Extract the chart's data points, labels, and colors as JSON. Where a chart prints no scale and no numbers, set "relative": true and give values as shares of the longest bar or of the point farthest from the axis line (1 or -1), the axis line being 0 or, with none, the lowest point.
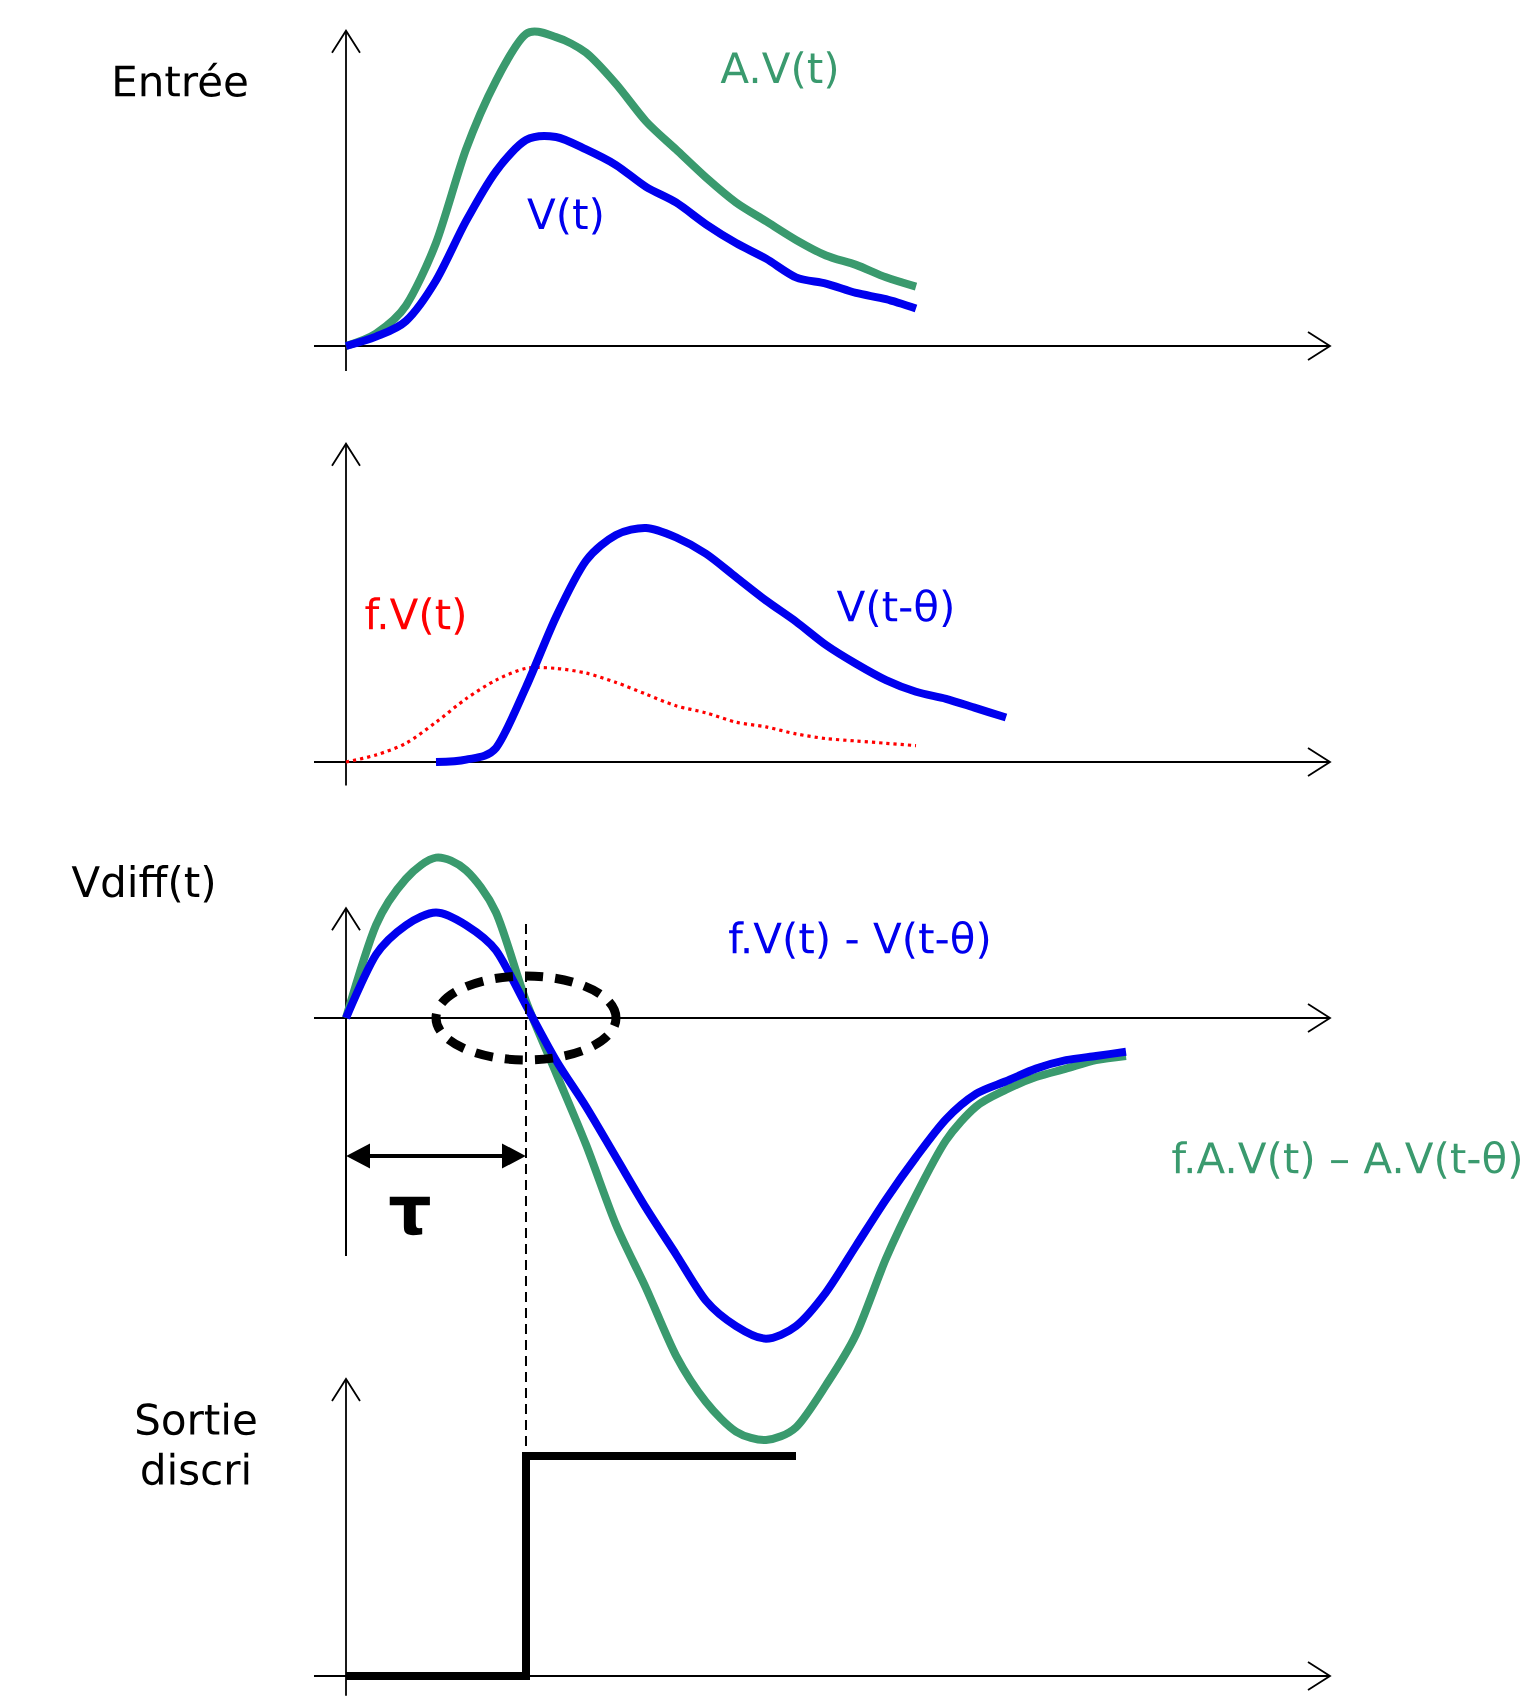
{
  "chart_data": [
    {
      "type": "line",
      "relative": true,
      "ylabel": "Entrée",
      "categories": [
        null,
        null,
        null,
        null,
        null,
        null,
        null,
        null,
        null,
        null,
        null,
        null,
        null,
        null,
        null,
        null,
        null,
        null,
        null,
        null,
        null,
        null,
        null,
        null,
        null,
        null,
        null
      ],
      "series": [
        {
          "name": "A.V(t)",
          "color": "#3a9a6e",
          "values": [
            0,
            0.04,
            0.13,
            0.33,
            0.63,
            0.85,
            1,
            0.99,
            0.94,
            0.84,
            0.72,
            0.63,
            0.54,
            0.46,
            0.4,
            0.34,
            0.29,
            0.26,
            0.22,
            0.19,
            null,
            null,
            null,
            null,
            null,
            null,
            null
          ]
        },
        {
          "name": "V(t)",
          "color": "#0000ee",
          "values": [
            0,
            0.03,
            0.08,
            0.21,
            0.4,
            0.56,
            0.66,
            0.67,
            0.63,
            0.58,
            0.51,
            0.46,
            0.39,
            0.33,
            0.28,
            0.22,
            0.2,
            0.17,
            0.15,
            0.12,
            null,
            null,
            null,
            null,
            null,
            null,
            null
          ]
        }
      ]
    },
    {
      "type": "line",
      "relative": true,
      "categories": [
        null,
        null,
        null,
        null,
        null,
        null,
        null,
        null,
        null,
        null,
        null,
        null,
        null,
        null,
        null,
        null,
        null,
        null,
        null,
        null,
        null,
        null,
        null,
        null,
        null,
        null,
        null
      ],
      "series": [
        {
          "name": "f.V(t)",
          "color": "#ff0000",
          "line_style": "dotted",
          "values": [
            0,
            0.03,
            0.08,
            0.17,
            0.27,
            0.35,
            0.4,
            0.4,
            0.38,
            0.34,
            0.29,
            0.24,
            0.21,
            0.17,
            0.15,
            0.12,
            0.1,
            0.09,
            0.08,
            0.07,
            null,
            null,
            null,
            null,
            null,
            null,
            null
          ]
        },
        {
          "name": "V(t-θ)",
          "color": "#0000ee",
          "values": [
            null,
            null,
            null,
            0,
            0.01,
            0.06,
            0.32,
            0.62,
            0.86,
            0.97,
            1,
            0.96,
            0.89,
            0.79,
            0.69,
            0.6,
            0.5,
            0.42,
            0.35,
            0.3,
            0.27,
            0.23,
            0.19,
            null,
            null,
            null,
            null
          ]
        }
      ]
    },
    {
      "type": "line",
      "relative": true,
      "ylabel": "Vdiff(t)",
      "annotations": [
        "τ"
      ],
      "categories": [
        null,
        null,
        null,
        null,
        null,
        null,
        null,
        null,
        null,
        null,
        null,
        null,
        null,
        null,
        null,
        null,
        null,
        null,
        null,
        null,
        null,
        null,
        null,
        null,
        null,
        null,
        null
      ],
      "series": [
        {
          "name": "f.A.V(t) – A.V(t-θ)",
          "color": "#3a9a6e",
          "values": [
            0,
            0.22,
            0.33,
            0.38,
            0.35,
            0.25,
            0.04,
            -0.13,
            -0.3,
            -0.49,
            -0.64,
            -0.8,
            -0.91,
            -0.98,
            -1,
            -0.97,
            -0.87,
            -0.75,
            -0.57,
            -0.42,
            -0.29,
            -0.21,
            -0.17,
            -0.14,
            -0.12,
            -0.1,
            -0.09
          ]
        },
        {
          "name": "f.V(t) - V(t-θ)",
          "color": "#0000ee",
          "values": [
            0,
            0.15,
            0.22,
            0.25,
            0.22,
            0.16,
            0.03,
            -0.1,
            -0.21,
            -0.33,
            -0.45,
            -0.56,
            -0.67,
            -0.73,
            -0.76,
            -0.73,
            -0.65,
            -0.54,
            -0.43,
            -0.33,
            -0.24,
            -0.18,
            -0.15,
            -0.12,
            -0.1,
            -0.09,
            -0.08
          ]
        }
      ]
    },
    {
      "type": "step",
      "relative": true,
      "ylabel": "Sortie discri",
      "categories": [
        null,
        null,
        null,
        null,
        null,
        null,
        null,
        null,
        null,
        null,
        null,
        null,
        null,
        null,
        null,
        null,
        null,
        null,
        null,
        null,
        null,
        null,
        null,
        null,
        null,
        null,
        null
      ],
      "series": [
        {
          "color": "#000000",
          "values": [
            0,
            0,
            0,
            0,
            0,
            0,
            1,
            1,
            1,
            1,
            1,
            1,
            1,
            1,
            1,
            1,
            null,
            null,
            null,
            null,
            null,
            null,
            null,
            null,
            null,
            null,
            null
          ]
        }
      ]
    }
  ]
}
